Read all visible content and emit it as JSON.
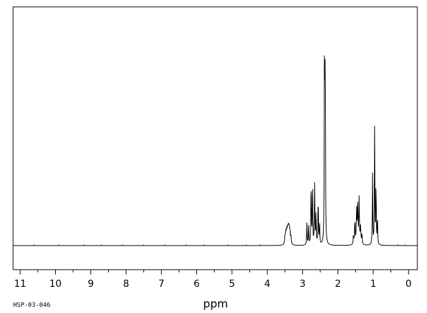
{
  "chart_data": {
    "type": "line",
    "title": "",
    "xlabel": "ppm",
    "ylabel": "",
    "sample_id": "HSP-03-046",
    "xlim": [
      11.2,
      -0.25
    ],
    "ylim": [
      0,
      1.0
    ],
    "x_reversed": true,
    "grid": false,
    "legend": "none",
    "line_color": "#000000",
    "x_major_ticks": [
      "11",
      "10",
      "9",
      "8",
      "7",
      "6",
      "5",
      "4",
      "3",
      "2",
      "1",
      "0"
    ],
    "x_minor_step": 0.5,
    "series": [
      {
        "peaks": [
          {
            "ppm": 3.5,
            "height": 0.03,
            "width": 0.012
          },
          {
            "ppm": 3.48,
            "height": 0.04,
            "width": 0.012
          },
          {
            "ppm": 3.46,
            "height": 0.045,
            "width": 0.012
          },
          {
            "ppm": 3.44,
            "height": 0.05,
            "width": 0.012
          },
          {
            "ppm": 3.42,
            "height": 0.055,
            "width": 0.012
          },
          {
            "ppm": 3.4,
            "height": 0.065,
            "width": 0.012
          },
          {
            "ppm": 3.38,
            "height": 0.06,
            "width": 0.012
          },
          {
            "ppm": 3.36,
            "height": 0.05,
            "width": 0.012
          },
          {
            "ppm": 3.33,
            "height": 0.035,
            "width": 0.012
          },
          {
            "ppm": 2.88,
            "height": 0.1,
            "width": 0.008
          },
          {
            "ppm": 2.83,
            "height": 0.09,
            "width": 0.008
          },
          {
            "ppm": 2.76,
            "height": 0.3,
            "width": 0.008
          },
          {
            "ppm": 2.72,
            "height": 0.265,
            "width": 0.008
          },
          {
            "ppm": 2.66,
            "height": 0.275,
            "width": 0.008
          },
          {
            "ppm": 2.62,
            "height": 0.14,
            "width": 0.008
          },
          {
            "ppm": 2.56,
            "height": 0.22,
            "width": 0.008
          },
          {
            "ppm": 2.52,
            "height": 0.1,
            "width": 0.008
          },
          {
            "ppm": 2.38,
            "height": 0.99,
            "width": 0.007
          },
          {
            "ppm": 2.36,
            "height": 0.96,
            "width": 0.007
          },
          {
            "ppm": 1.56,
            "height": 0.04,
            "width": 0.01
          },
          {
            "ppm": 1.52,
            "height": 0.11,
            "width": 0.01
          },
          {
            "ppm": 1.47,
            "height": 0.16,
            "width": 0.01
          },
          {
            "ppm": 1.44,
            "height": 0.17,
            "width": 0.01
          },
          {
            "ppm": 1.4,
            "height": 0.21,
            "width": 0.01
          },
          {
            "ppm": 1.36,
            "height": 0.08,
            "width": 0.01
          },
          {
            "ppm": 1.32,
            "height": 0.05,
            "width": 0.01
          },
          {
            "ppm": 1.02,
            "height": 0.33,
            "width": 0.007
          },
          {
            "ppm": 0.96,
            "height": 0.57,
            "width": 0.007
          },
          {
            "ppm": 0.92,
            "height": 0.3,
            "width": 0.007
          },
          {
            "ppm": 0.88,
            "height": 0.14,
            "width": 0.007
          }
        ]
      }
    ]
  }
}
